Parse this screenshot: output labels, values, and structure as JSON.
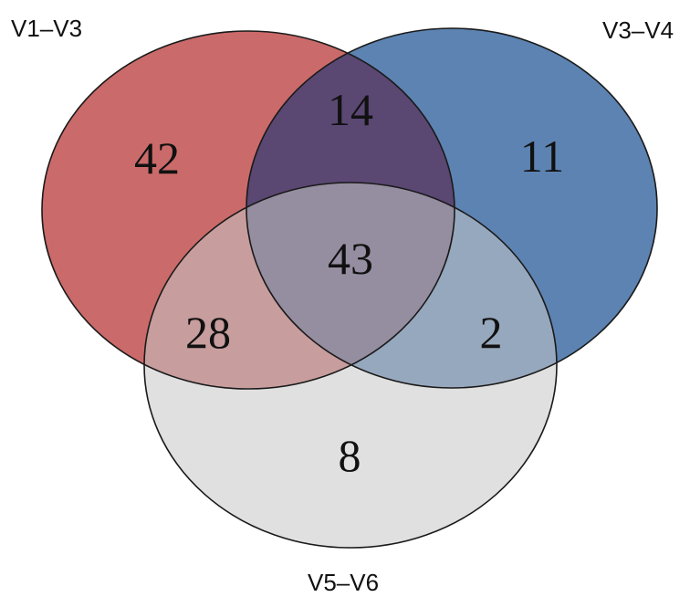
{
  "sets": [
    {
      "id": "A",
      "label": "V1–V3",
      "color": "#c55a5a"
    },
    {
      "id": "B",
      "label": "V3–V4",
      "color": "#4a76a8"
    },
    {
      "id": "C",
      "label": "V5–V6",
      "color": "#c6c6c6"
    }
  ],
  "regions": {
    "only_v1_v3": "42",
    "only_v3_v4": "11",
    "only_v5_v6": "8",
    "v1_v3_and_v3_v4": "14",
    "v1_v3_and_v5_v6": "28",
    "v3_v4_and_v5_v6": "2",
    "all_three": "43"
  }
}
